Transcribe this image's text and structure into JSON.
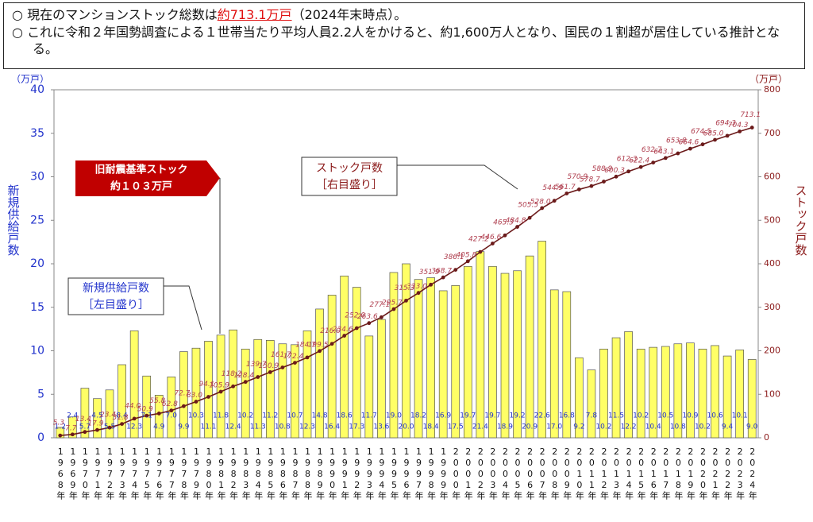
{
  "header": {
    "line1": {
      "bullet": "○",
      "before": "現在のマンションストック総数は",
      "emphasis": "約713.1万戸",
      "after": "（2024年末時点）。"
    },
    "line2": {
      "bullet": "○",
      "text": "これに令和２年国勢調査による１世帯当たり平均人員2.2人をかけると、約1,600万人となり、国民の１割超が居住している推計となる。"
    }
  },
  "chart_data": {
    "type": "bar_line",
    "ylabel": "新規供給戸数",
    "y2label": "ストック戸数",
    "yunit": "（万戸）",
    "y2unit": "（万戸）",
    "ylim": [
      0,
      40
    ],
    "yticks": [
      0,
      5,
      10,
      15,
      20,
      25,
      30,
      35,
      40
    ],
    "y2lim": [
      0,
      800
    ],
    "y2ticks": [
      0,
      100,
      200,
      300,
      400,
      500,
      600,
      700,
      800
    ],
    "categories": [
      "1968年",
      "1969年",
      "1970年",
      "1971年",
      "1972年",
      "1973年",
      "1974年",
      "1975年",
      "1976年",
      "1977年",
      "1978年",
      "1979年",
      "1980年",
      "1981年",
      "1982年",
      "1983年",
      "1984年",
      "1985年",
      "1986年",
      "1987年",
      "1988年",
      "1989年",
      "1990年",
      "1991年",
      "1992年",
      "1993年",
      "1994年",
      "1995年",
      "1996年",
      "1997年",
      "1998年",
      "1999年",
      "2000年",
      "2001年",
      "2002年",
      "2003年",
      "2004年",
      "2005年",
      "2006年",
      "2007年",
      "2008年",
      "2009年",
      "2010年",
      "2011年",
      "2012年",
      "2013年",
      "2014年",
      "2015年",
      "2016年",
      "2017年",
      "2018年",
      "2019年",
      "2020年",
      "2021年",
      "2022年",
      "2023年",
      "2024年"
    ],
    "series": [
      {
        "name": "新規供給戸数",
        "type": "bar",
        "axis": "y",
        "color": "#ffff66",
        "values": [
          1.2,
          2.4,
          5.7,
          4.5,
          5.5,
          8.4,
          12.3,
          7.1,
          4.9,
          7.0,
          9.9,
          10.3,
          11.1,
          11.8,
          12.4,
          10.2,
          11.3,
          11.2,
          10.8,
          10.7,
          12.3,
          14.8,
          16.4,
          18.6,
          17.3,
          11.7,
          13.6,
          19.0,
          20.0,
          18.2,
          18.4,
          16.9,
          17.5,
          19.7,
          21.4,
          19.7,
          18.9,
          19.2,
          20.9,
          22.6,
          17.0,
          16.8,
          9.2,
          7.8,
          10.2,
          11.5,
          12.2,
          10.2,
          10.4,
          10.5,
          10.8,
          10.9,
          10.2,
          10.6,
          9.4,
          10.1,
          9.0
        ],
        "value_labels": [
          "1.2",
          "2.4",
          "5.7",
          "4.5",
          "5.5",
          "8.4",
          "12.3",
          "7.1",
          "4.9",
          "7.0",
          "9.9",
          "10.3",
          "11.1",
          "11.8",
          "12.4",
          "10.2",
          "11.3",
          "11.2",
          "10.8",
          "10.7",
          "12.3",
          "14.8",
          "16.4",
          "18.6",
          "17.3",
          "11.7",
          "13.6",
          "19.0",
          "20.0",
          "18.2",
          "18.4",
          "16.9",
          "17.5",
          "19.7",
          "21.4",
          "19.7",
          "18.9",
          "19.2",
          "20.9",
          "22.6",
          "17.0",
          "16.8",
          "9.2",
          "7.8",
          "10.2",
          "11.5",
          "12.2",
          "10.2",
          "10.4",
          "10.5",
          "10.8",
          "10.9",
          "10.2",
          "10.6",
          "9.4",
          "10.1",
          "9.0"
        ]
      },
      {
        "name": "ストック戸数",
        "type": "line",
        "axis": "y2",
        "color": "#6b1a1a",
        "values": [
          5.3,
          7.7,
          13.4,
          17.9,
          23.4,
          31.8,
          44.0,
          50.9,
          55.8,
          62.8,
          72.7,
          83.0,
          94.1,
          105.9,
          118.2,
          128.4,
          139.7,
          150.9,
          161.7,
          172.4,
          184.7,
          199.5,
          216.0,
          234.6,
          252.0,
          263.6,
          277.1,
          295.7,
          315.3,
          333.0,
          351.9,
          368.7,
          386.1,
          405.8,
          427.2,
          446.6,
          465.3,
          484.8,
          505.5,
          528.0,
          544.9,
          561.7,
          570.9,
          578.7,
          588.9,
          600.3,
          612.3,
          622.4,
          632.7,
          643.1,
          653.8,
          664.6,
          674.5,
          685.0,
          694.3,
          704.3,
          713.1
        ],
        "value_labels": [
          "5.3",
          "7.7",
          "13.4",
          "17.9",
          "23.4",
          "31.8",
          "44.0",
          "50.9",
          "55.8",
          "62.8",
          "72.7",
          "83.0",
          "94.1",
          "105.9",
          "118.2",
          "128.4",
          "139.7",
          "150.9",
          "161.7",
          "172.4",
          "184.7",
          "199.5",
          "216.0",
          "234.6",
          "252.0",
          "263.6",
          "277.1",
          "295.7",
          "315.3",
          "333.0",
          "351.9",
          "368.7",
          "386.1",
          "405.8",
          "427.2",
          "446.6",
          "465.3",
          "484.8",
          "505.5",
          "528.0",
          "544.9",
          "561.7",
          "570.9",
          "578.7",
          "588.9",
          "600.3",
          "612.3",
          "622.4",
          "632.7",
          "643.1",
          "653.8",
          "664.6",
          "674.5",
          "685.0",
          "694.3",
          "704.3",
          "713.1"
        ]
      }
    ],
    "annotations": {
      "old_stock": [
        "旧耐震基準ストック",
        "約１０３万戸"
      ],
      "stock_note": "［右目盛り］",
      "supply_note": "［左目盛り］"
    }
  }
}
